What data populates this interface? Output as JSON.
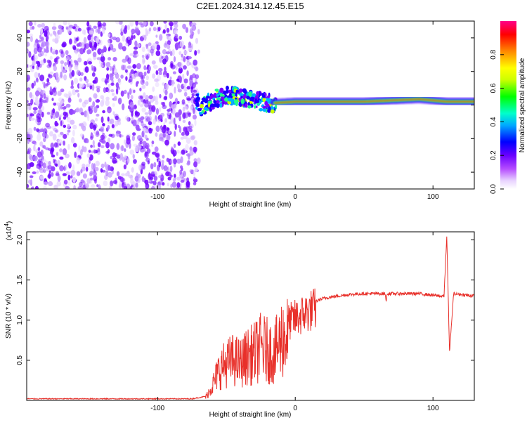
{
  "title": "C2E1.2024.314.12.45.E15",
  "chart_data": [
    {
      "type": "heatmap",
      "xlabel": "Height of straight line (km)",
      "ylabel": "Frequency (Hz)",
      "xlim": [
        -195,
        130
      ],
      "ylim": [
        -50,
        50
      ],
      "xticks": [
        -100,
        0,
        100
      ],
      "yticks": [
        -40,
        -20,
        0,
        20,
        40
      ],
      "colorbar": {
        "label": "Normalized spectral amplitude",
        "range": [
          0,
          1
        ],
        "ticks": [
          "0.0",
          "0.2",
          "0.4",
          "0.6",
          "0.8"
        ]
      },
      "noise_region": {
        "x": [
          -195,
          -70
        ],
        "y": [
          -50,
          50
        ]
      },
      "signal_track": [
        {
          "x": -70,
          "f": -2
        },
        {
          "x": -60,
          "f": 3
        },
        {
          "x": -50,
          "f": 6
        },
        {
          "x": -40,
          "f": 5
        },
        {
          "x": -30,
          "f": 3
        },
        {
          "x": -20,
          "f": 1
        },
        {
          "x": 0,
          "f": 2
        },
        {
          "x": 50,
          "f": 2
        },
        {
          "x": 90,
          "f": 3.5
        },
        {
          "x": 110,
          "f": 2
        },
        {
          "x": 130,
          "f": 2
        }
      ]
    },
    {
      "type": "line",
      "xlabel": "Height of straight line (km)",
      "ylabel": "SNR (10 * v/v)",
      "yexponent": "4",
      "xlim": [
        -195,
        130
      ],
      "ylim": [
        0,
        2.1
      ],
      "xticks": [
        -100,
        0,
        100
      ],
      "yticks": [
        "0.5",
        "1.0",
        "1.5",
        "2.0"
      ],
      "series": [
        {
          "color": "#e8302a",
          "x": [
            -195,
            -150,
            -100,
            -75,
            -65,
            -60,
            -55,
            -50,
            -45,
            -40,
            -35,
            -30,
            -25,
            -20,
            -15,
            -10,
            -5,
            0,
            5,
            10,
            20,
            30,
            40,
            50,
            60,
            65,
            66,
            67,
            70,
            80,
            90,
            100,
            105,
            108,
            110,
            112,
            115,
            120,
            130
          ],
          "y": [
            0.02,
            0.02,
            0.02,
            0.02,
            0.05,
            0.25,
            0.5,
            0.6,
            0.65,
            0.6,
            0.7,
            0.75,
            0.85,
            0.8,
            0.75,
            1.0,
            1.05,
            1.1,
            1.15,
            1.2,
            1.27,
            1.3,
            1.32,
            1.33,
            1.33,
            1.33,
            1.25,
            1.33,
            1.33,
            1.33,
            1.33,
            1.31,
            1.3,
            1.3,
            2.05,
            0.6,
            1.33,
            1.32,
            1.3
          ]
        }
      ]
    }
  ]
}
